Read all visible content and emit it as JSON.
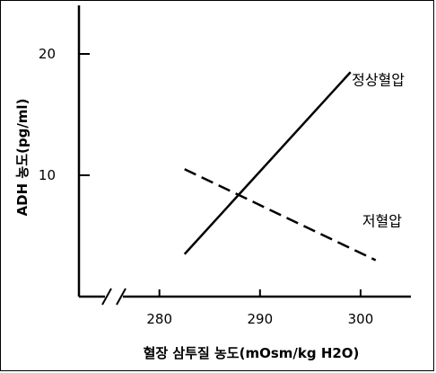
{
  "chart_data": {
    "type": "line",
    "xlabel": "혈장 삼투질 농도(mOsm/kg H2O)",
    "ylabel": "ADH 농도(pg/ml)",
    "x_ticks": [
      280,
      290,
      300
    ],
    "y_ticks": [
      10,
      20
    ],
    "xlim": [
      272,
      305
    ],
    "ylim": [
      0,
      24
    ],
    "x_axis_break": true,
    "grid": false,
    "series": [
      {
        "name": "정상혈압",
        "style": "solid",
        "x": [
          282.5,
          299
        ],
        "y": [
          3.5,
          18.5
        ]
      },
      {
        "name": "저혈압",
        "style": "dashed",
        "x": [
          282.5,
          301.5
        ],
        "y": [
          10.5,
          3
        ]
      }
    ]
  }
}
